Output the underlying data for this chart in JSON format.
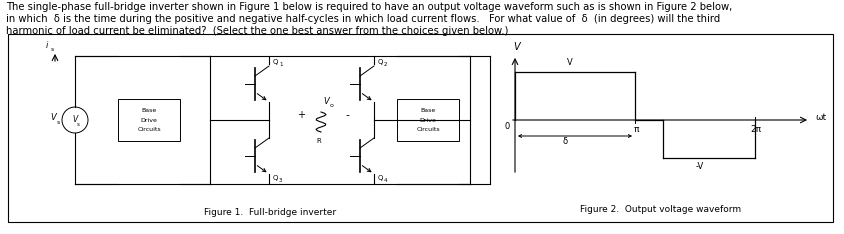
{
  "text_line1": "The single-phase full-bridge inverter shown in Figure 1 below is required to have an output voltage waveform such as is shown in Figure 2 below,",
  "text_line2": "in which  δ is the time during the positive and negative half-cycles in which load current flows.   For what value of  δ  (in degrees) will the third",
  "text_line3": "harmonic of load current be eliminated?  (Select the one best answer from the choices given below.)",
  "fig1_caption": "Figure 1.  Full-bridge inverter",
  "fig2_caption": "Figure 2.  Output voltage waveform",
  "bg_color": "#ffffff",
  "box_color": "#000000",
  "text_color": "#000000",
  "font_size": 7.2,
  "caption_font_size": 6.5
}
